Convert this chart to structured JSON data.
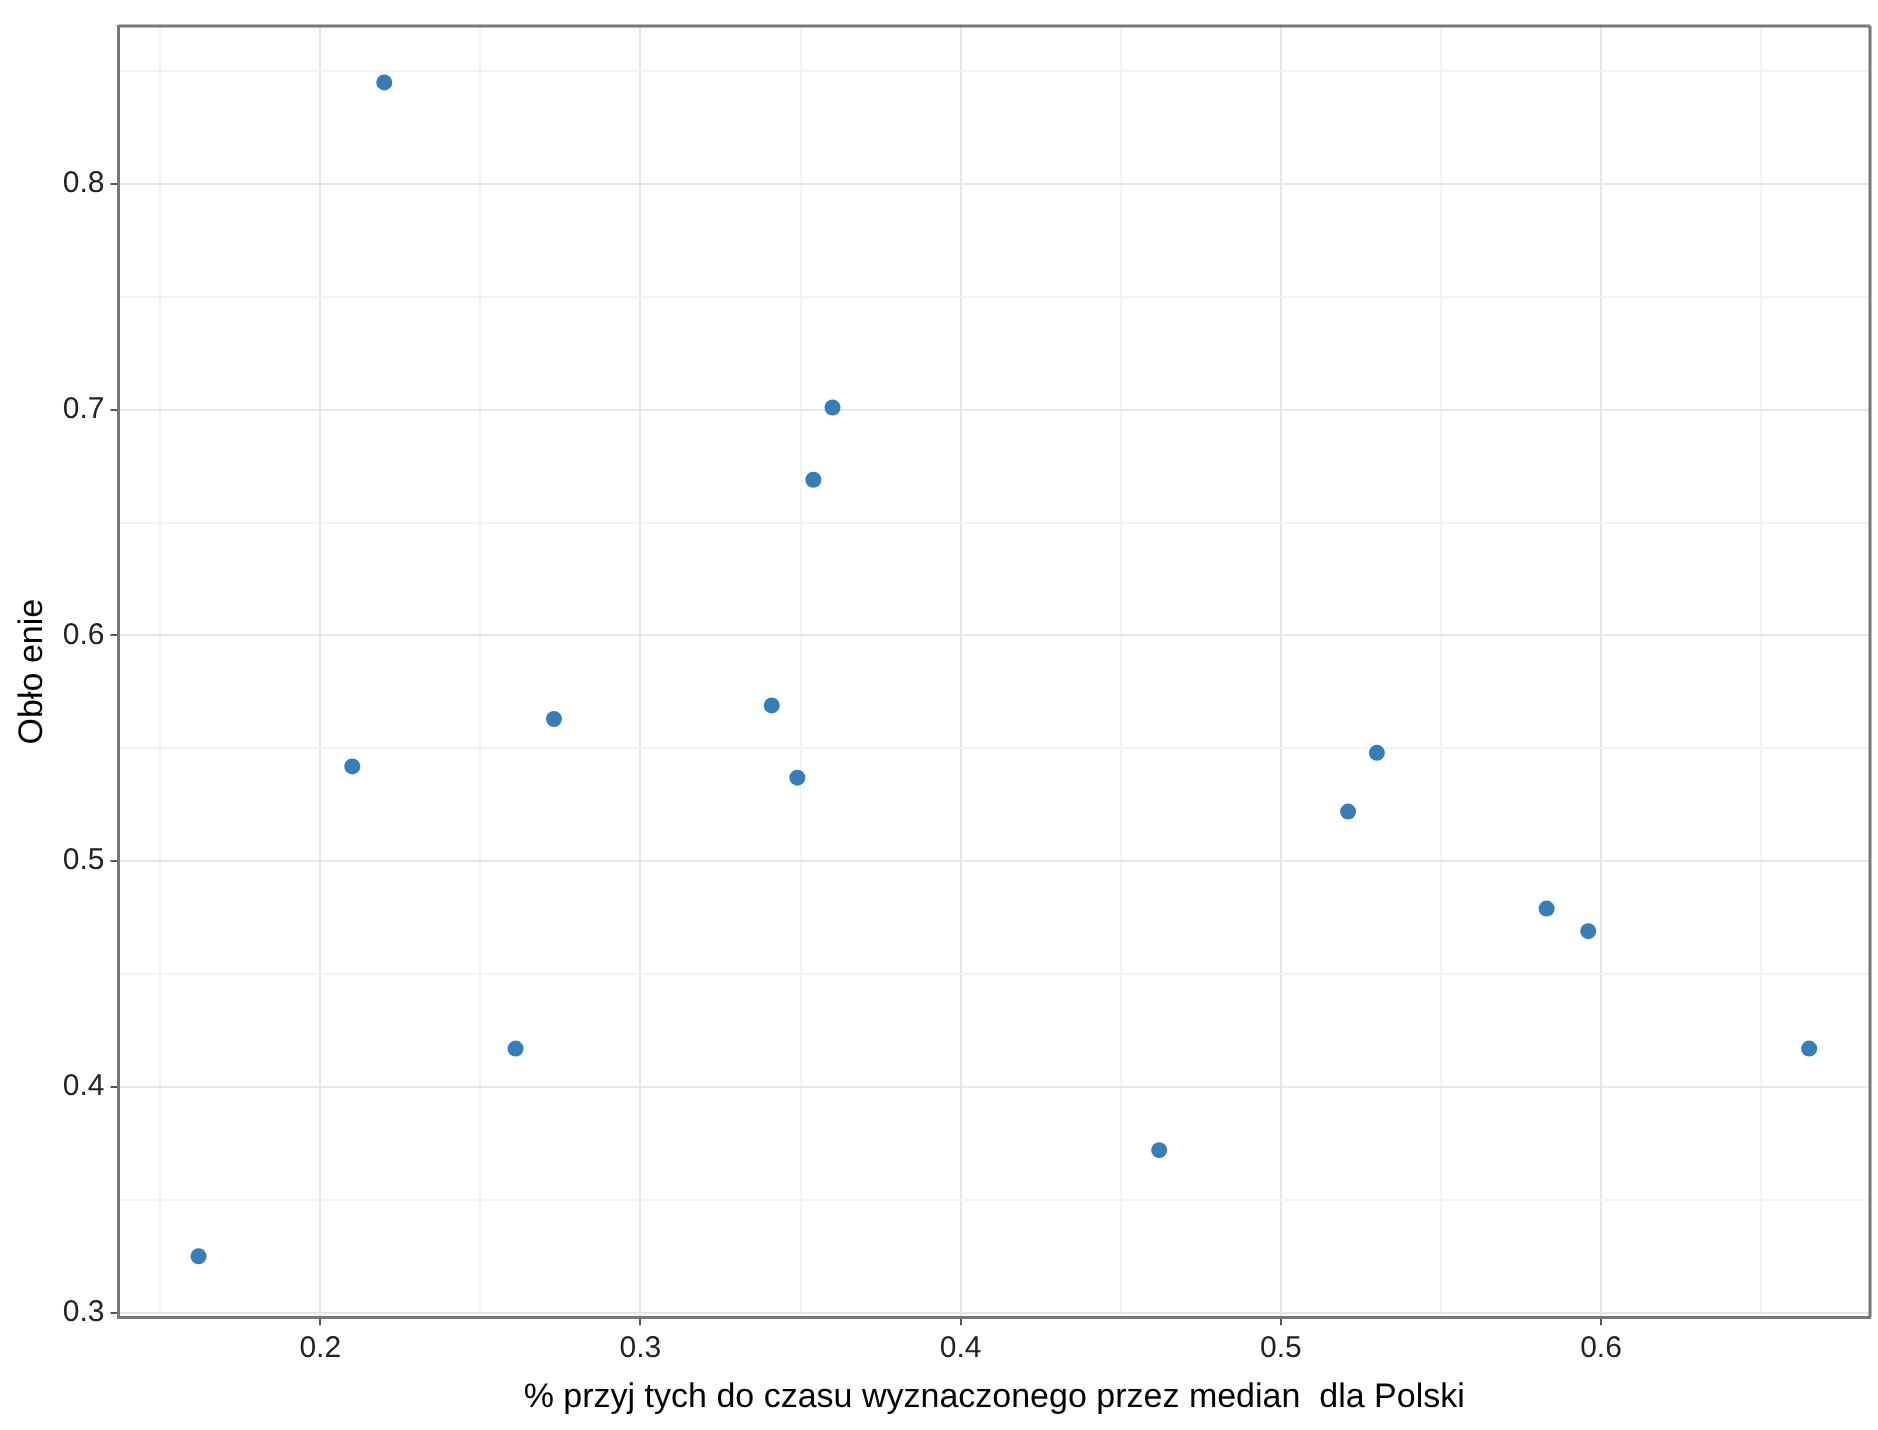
{
  "chart_data": {
    "type": "scatter",
    "xlabel": "% przyj tych do czasu wyznaczonego przez median  dla Polski",
    "ylabel": "Obło enie",
    "xlim": [
      0.137,
      0.684
    ],
    "ylim": [
      0.298,
      0.87
    ],
    "xticks": [
      {
        "value": 0.15,
        "label": null
      },
      0.2,
      {
        "value": 0.25,
        "label": null
      },
      0.3,
      {
        "value": 0.35,
        "label": null
      },
      0.4,
      {
        "value": 0.45,
        "label": null
      },
      0.5,
      {
        "value": 0.55,
        "label": null
      },
      0.6,
      {
        "value": 0.65,
        "label": null
      }
    ],
    "yticks": [
      0.3,
      {
        "value": 0.35,
        "label": null
      },
      0.4,
      {
        "value": 0.45,
        "label": null
      },
      0.5,
      {
        "value": 0.55,
        "label": null
      },
      0.6,
      {
        "value": 0.65,
        "label": null
      },
      0.7,
      {
        "value": 0.75,
        "label": null
      },
      0.8,
      {
        "value": 0.85,
        "label": null
      }
    ],
    "grid": true,
    "legend": false,
    "marker": "circle",
    "series": [
      {
        "color": "#377eb8",
        "x": [
          0.162,
          0.21,
          0.22,
          0.261,
          0.273,
          0.341,
          0.349,
          0.354,
          0.36,
          0.462,
          0.521,
          0.53,
          0.583,
          0.596,
          0.665
        ],
        "values": [
          0.325,
          0.542,
          0.845,
          0.417,
          0.563,
          0.569,
          0.537,
          0.669,
          0.701,
          0.372,
          0.522,
          0.548,
          0.479,
          0.469,
          0.417
        ]
      }
    ]
  }
}
